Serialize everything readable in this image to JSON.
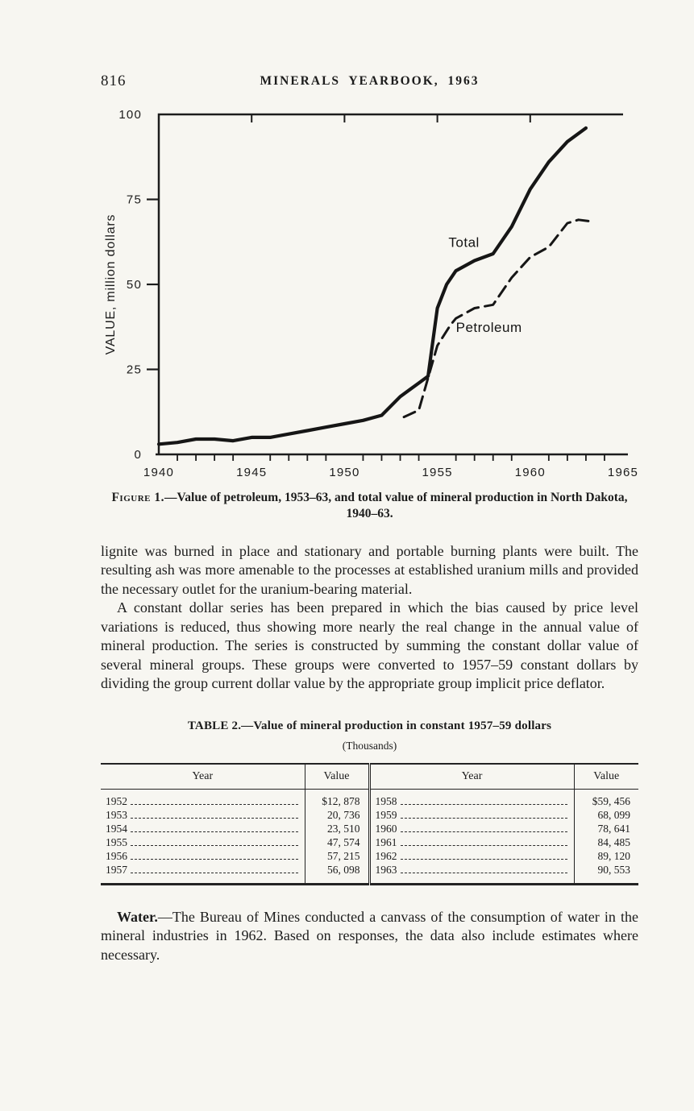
{
  "page": {
    "page_number": "816",
    "running_header": "MINERALS YEARBOOK, 1963"
  },
  "figure": {
    "caption_label": "Figure 1.",
    "caption_rest": "—Value of petroleum, 1953–63, and total value of mineral production in North Dakota, 1940–63."
  },
  "chart_data": {
    "type": "line",
    "title": "",
    "xlabel": "",
    "ylabel": "VALUE, million dollars",
    "ylim": [
      0,
      100
    ],
    "yticks": [
      0,
      25,
      50,
      75,
      100
    ],
    "xlim": [
      1940,
      1965
    ],
    "xticks": [
      1940,
      1945,
      1950,
      1955,
      1960,
      1965
    ],
    "grid": false,
    "legend_position": "inline-labels",
    "series": [
      {
        "name": "Total",
        "style": "solid",
        "x": [
          1940,
          1941,
          1942,
          1943,
          1944,
          1945,
          1946,
          1947,
          1948,
          1949,
          1950,
          1951,
          1952,
          1953,
          1954,
          1954.5,
          1955,
          1955.5,
          1956,
          1957,
          1958,
          1959,
          1960,
          1961,
          1962,
          1963
        ],
        "values": [
          3,
          3.5,
          4.5,
          4.5,
          4,
          5,
          5,
          6,
          7,
          8,
          9,
          10,
          11.5,
          17,
          21,
          23,
          43,
          50,
          54,
          57,
          59,
          67,
          78,
          86,
          92,
          96
        ]
      },
      {
        "name": "Petroleum",
        "style": "dashed",
        "x": [
          1953.2,
          1954,
          1955,
          1955.7,
          1956,
          1957,
          1958,
          1959,
          1960,
          1961,
          1962,
          1962.6,
          1963.3
        ],
        "values": [
          11,
          13,
          32,
          38,
          40,
          43,
          44,
          52,
          58,
          61,
          68,
          69,
          68.5
        ]
      }
    ],
    "labels": [
      {
        "text": "Total",
        "x": 1955.6,
        "y": 61
      },
      {
        "text": "Petroleum",
        "x": 1956.0,
        "y": 36
      }
    ]
  },
  "body": {
    "paragraph1": "lignite was burned in place and stationary and portable burning plants were built.  The resulting ash was more amenable to the processes at established uranium mills and provided the necessary outlet for the uranium-bearing material.",
    "paragraph2": "A constant dollar series has been prepared in which the bias caused by price level variations is reduced, thus showing more nearly the real change in the annual value of mineral production.  The series is constructed by summing the constant dollar value of several mineral groups.  These groups were converted to 1957–59 constant dollars by dividing the group current dollar value by the appropriate group implicit price deflator."
  },
  "table": {
    "title_label": "TABLE 2.",
    "title_rest": "—Value of mineral production in constant 1957–59 dollars",
    "subtitle": "(Thousands)",
    "columns": [
      "Year",
      "Value",
      "Year",
      "Value"
    ],
    "rows": [
      {
        "y1": "1952",
        "v1": "$12, 878",
        "y2": "1958",
        "v2": "$59, 456"
      },
      {
        "y1": "1953",
        "v1": "20, 736",
        "y2": "1959",
        "v2": "68, 099"
      },
      {
        "y1": "1954",
        "v1": "23, 510",
        "y2": "1960",
        "v2": "78, 641"
      },
      {
        "y1": "1955",
        "v1": "47, 574",
        "y2": "1961",
        "v2": "84, 485"
      },
      {
        "y1": "1956",
        "v1": "57, 215",
        "y2": "1962",
        "v2": "89, 120"
      },
      {
        "y1": "1957",
        "v1": "56, 098",
        "y2": "1963",
        "v2": "90, 553"
      }
    ]
  },
  "water": {
    "lead": "Water.",
    "text": "—The Bureau of Mines conducted a canvass of the consumption of water in the mineral industries in 1962.  Based on responses, the data also include estimates where necessary."
  }
}
